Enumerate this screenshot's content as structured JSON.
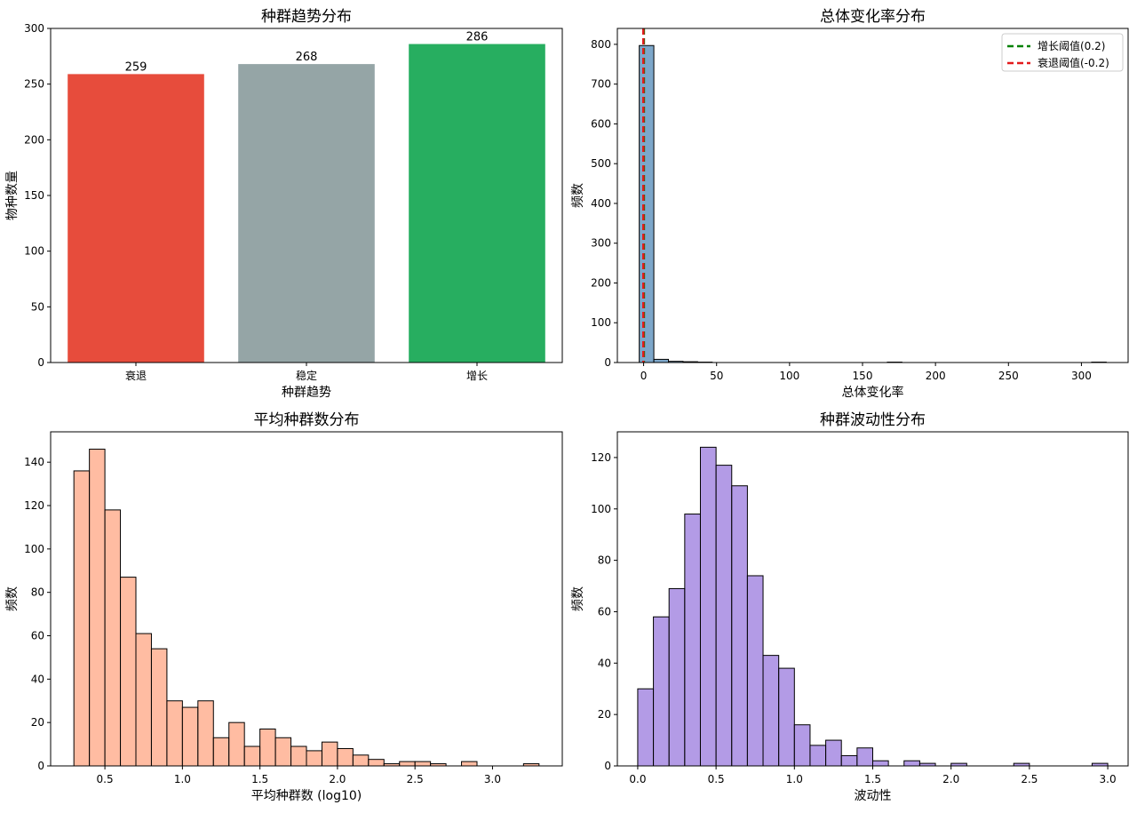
{
  "chart_data": [
    {
      "type": "bar",
      "title": "种群趋势分布",
      "xlabel": "种群趋势",
      "ylabel": "物种数量",
      "categories": [
        "衰退",
        "稳定",
        "增长"
      ],
      "values": [
        259,
        268,
        286
      ],
      "value_labels": [
        "259",
        "268",
        "286"
      ],
      "colors": [
        "#e74c3c",
        "#95a5a6",
        "#27ae60"
      ],
      "ylim": [
        0,
        300
      ],
      "yticks": [
        0,
        50,
        100,
        150,
        200,
        250,
        300
      ],
      "ytick_labels": [
        "0",
        "50",
        "100",
        "150",
        "200",
        "250",
        "300"
      ]
    },
    {
      "type": "bar",
      "subtype": "histogram",
      "title": "总体变化率分布",
      "xlabel": "总体变化率",
      "ylabel": "频数",
      "color": "#4682b4",
      "bin_width": 10,
      "bin_start": -3,
      "bins": [
        {
          "x0": -3,
          "x1": 7,
          "count": 797
        },
        {
          "x0": 7,
          "x1": 17,
          "count": 8
        },
        {
          "x0": 17,
          "x1": 27,
          "count": 3
        },
        {
          "x0": 27,
          "x1": 37,
          "count": 2
        },
        {
          "x0": 37,
          "x1": 47,
          "count": 1
        },
        {
          "x0": 167,
          "x1": 177,
          "count": 1
        },
        {
          "x0": 307,
          "x1": 317,
          "count": 1
        }
      ],
      "xlim": [
        -18,
        332
      ],
      "ylim": [
        0,
        840
      ],
      "xticks": [
        0,
        50,
        100,
        150,
        200,
        250,
        300
      ],
      "xtick_labels": [
        "0",
        "50",
        "100",
        "150",
        "200",
        "250",
        "300"
      ],
      "yticks": [
        0,
        100,
        200,
        300,
        400,
        500,
        600,
        700,
        800
      ],
      "ytick_labels": [
        "0",
        "100",
        "200",
        "300",
        "400",
        "500",
        "600",
        "700",
        "800"
      ],
      "thresholds": [
        {
          "label": "增长阈值(0.2)",
          "value": 0.2,
          "color": "#008000"
        },
        {
          "label": "衰退阈值(-0.2)",
          "value": -0.2,
          "color": "#e31a1c"
        }
      ],
      "legend_position": "top-right"
    },
    {
      "type": "bar",
      "subtype": "histogram",
      "title": "平均种群数分布",
      "xlabel": "平均种群数 (log10)",
      "ylabel": "频数",
      "color": "#ffa07a",
      "bin_width": 0.1,
      "bin_start": 0.3,
      "counts": [
        136,
        146,
        118,
        87,
        61,
        54,
        30,
        27,
        30,
        13,
        20,
        9,
        17,
        13,
        9,
        7,
        11,
        8,
        5,
        3,
        1,
        2,
        2,
        1,
        0,
        2,
        0,
        0,
        0,
        1
      ],
      "xlim": [
        0.15,
        3.45
      ],
      "ylim": [
        0,
        154
      ],
      "xticks": [
        0.5,
        1.0,
        1.5,
        2.0,
        2.5,
        3.0
      ],
      "xtick_labels": [
        "0.5",
        "1.0",
        "1.5",
        "2.0",
        "2.5",
        "3.0"
      ],
      "yticks": [
        0,
        20,
        40,
        60,
        80,
        100,
        120,
        140
      ],
      "ytick_labels": [
        "0",
        "20",
        "40",
        "60",
        "80",
        "100",
        "120",
        "140"
      ]
    },
    {
      "type": "bar",
      "subtype": "histogram",
      "title": "种群波动性分布",
      "xlabel": "波动性",
      "ylabel": "频数",
      "color": "#9370db",
      "bin_width": 0.1,
      "bin_start": 0.0,
      "counts": [
        30,
        58,
        69,
        98,
        124,
        117,
        109,
        74,
        43,
        38,
        16,
        8,
        10,
        4,
        7,
        2,
        0,
        2,
        1,
        0,
        1,
        0,
        0,
        0,
        1,
        0,
        0,
        0,
        0,
        1
      ],
      "xlim": [
        -0.13,
        3.13
      ],
      "ylim": [
        0,
        130
      ],
      "xticks": [
        0.0,
        0.5,
        1.0,
        1.5,
        2.0,
        2.5,
        3.0
      ],
      "xtick_labels": [
        "0.0",
        "0.5",
        "1.0",
        "1.5",
        "2.0",
        "2.5",
        "3.0"
      ],
      "yticks": [
        0,
        20,
        40,
        60,
        80,
        100,
        120
      ],
      "ytick_labels": [
        "0",
        "20",
        "40",
        "60",
        "80",
        "100",
        "120"
      ]
    }
  ]
}
